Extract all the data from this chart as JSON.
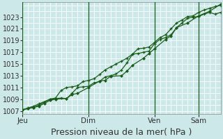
{
  "bg_color": "#cce8e8",
  "plot_bg_color": "#cce8e8",
  "grid_color": "#ffffff",
  "line_color": "#1a5c1a",
  "ylabel": "Pression niveau de la mer( hPa )",
  "ylim": [
    1006.5,
    1025.5
  ],
  "yticks": [
    1007,
    1009,
    1011,
    1013,
    1015,
    1017,
    1019,
    1021,
    1023
  ],
  "day_labels": [
    "Jeu",
    "Dim",
    "Ven",
    "Sam"
  ],
  "total_hours": 216,
  "line1_x": [
    0,
    6,
    12,
    18,
    30,
    36,
    42,
    48,
    54,
    60,
    66,
    72,
    78,
    84,
    90,
    96,
    102,
    108,
    114,
    120,
    126,
    132,
    138,
    144,
    150,
    156,
    162,
    168,
    174,
    180,
    186,
    192,
    198,
    204,
    210,
    216
  ],
  "line1_y": [
    1007.2,
    1007.5,
    1007.8,
    1008.2,
    1009.0,
    1009.1,
    1009.2,
    1009.1,
    1010.0,
    1011.0,
    1011.1,
    1011.2,
    1011.8,
    1012.0,
    1012.8,
    1013.0,
    1013.3,
    1014.0,
    1015.2,
    1016.7,
    1016.8,
    1017.0,
    1017.2,
    1018.5,
    1019.2,
    1019.5,
    1020.0,
    1021.2,
    1022.0,
    1022.8,
    1023.0,
    1023.1,
    1023.5,
    1023.8,
    1023.5,
    1023.8
  ],
  "line2_x": [
    0,
    6,
    12,
    18,
    24,
    30,
    36,
    42,
    48,
    54,
    60,
    66,
    72,
    78,
    84,
    90,
    96,
    102,
    108,
    114,
    120,
    126,
    132,
    138,
    144,
    150,
    156,
    162,
    168,
    174,
    180,
    186,
    192,
    198,
    204,
    210,
    216
  ],
  "line2_y": [
    1007.2,
    1007.4,
    1007.6,
    1008.0,
    1008.5,
    1009.0,
    1009.2,
    1010.5,
    1011.0,
    1011.1,
    1011.3,
    1012.0,
    1012.2,
    1012.5,
    1013.2,
    1014.0,
    1014.5,
    1015.0,
    1015.5,
    1016.0,
    1016.7,
    1017.6,
    1017.7,
    1017.9,
    1018.7,
    1019.5,
    1020.0,
    1021.0,
    1022.0,
    1022.5,
    1023.1,
    1023.2,
    1023.8,
    1024.2,
    1024.5,
    1024.8,
    1025.0
  ],
  "line3_x": [
    0,
    6,
    12,
    18,
    24,
    30,
    36,
    48,
    54,
    60,
    72,
    84,
    90,
    96,
    108,
    114,
    120,
    132,
    138,
    144,
    156,
    162,
    168,
    180,
    192,
    204,
    216
  ],
  "line3_y": [
    1007.2,
    1007.4,
    1007.6,
    1007.8,
    1008.3,
    1008.8,
    1009.0,
    1009.1,
    1009.8,
    1010.0,
    1011.0,
    1012.1,
    1012.2,
    1012.9,
    1013.0,
    1013.8,
    1014.8,
    1016.0,
    1016.8,
    1017.6,
    1019.2,
    1019.8,
    1021.2,
    1022.0,
    1023.2,
    1024.0,
    1025.2
  ],
  "xlabel_fontsize": 9,
  "ytick_fontsize": 7,
  "xtick_fontsize": 7.5
}
